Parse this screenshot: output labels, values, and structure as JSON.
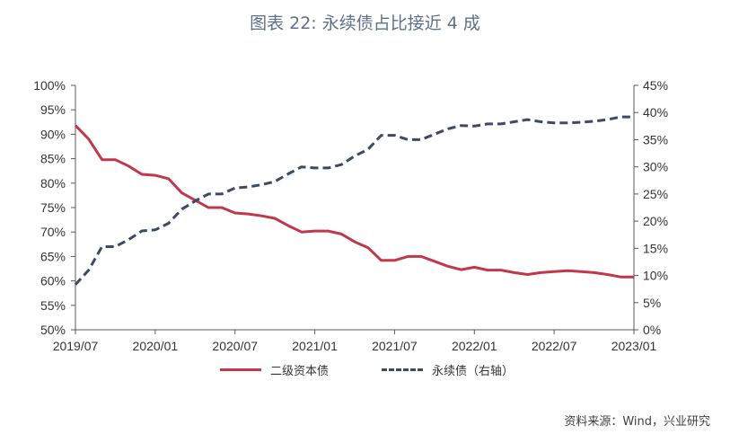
{
  "title": "图表 22: 永续债占比接近 4 成",
  "source": "资料来源：Wind，兴业研究",
  "colors": {
    "series1": "#c1384b",
    "series2": "#3b4a66",
    "axis": "#595959"
  },
  "chart_data": {
    "type": "line",
    "x_tick_labels": [
      "2019/07",
      "2020/01",
      "2020/07",
      "2021/01",
      "2021/07",
      "2022/01",
      "2022/07",
      "2023/01"
    ],
    "x_range": [
      "2019/07",
      "2023/01"
    ],
    "x": [
      "2019/07",
      "2019/08",
      "2019/09",
      "2019/10",
      "2019/11",
      "2019/12",
      "2020/01",
      "2020/02",
      "2020/03",
      "2020/04",
      "2020/05",
      "2020/06",
      "2020/07",
      "2020/08",
      "2020/09",
      "2020/10",
      "2020/11",
      "2020/12",
      "2021/01",
      "2021/02",
      "2021/03",
      "2021/04",
      "2021/05",
      "2021/06",
      "2021/07",
      "2021/08",
      "2021/09",
      "2021/10",
      "2021/11",
      "2021/12",
      "2022/01",
      "2022/02",
      "2022/03",
      "2022/04",
      "2022/05",
      "2022/06",
      "2022/07",
      "2022/08",
      "2022/09",
      "2022/10",
      "2022/11",
      "2022/12",
      "2023/01"
    ],
    "y_left": {
      "min": 50,
      "max": 100,
      "step": 5,
      "unit": "%",
      "tick_labels": [
        "50%",
        "55%",
        "60%",
        "65%",
        "70%",
        "75%",
        "80%",
        "85%",
        "90%",
        "95%",
        "100%"
      ]
    },
    "y_right": {
      "min": 0,
      "max": 45,
      "step": 5,
      "unit": "%",
      "tick_labels": [
        "0%",
        "5%",
        "10%",
        "15%",
        "20%",
        "25%",
        "30%",
        "35%",
        "40%",
        "45%"
      ]
    },
    "grid": false,
    "legend_position": "bottom",
    "series": [
      {
        "name": "二级资本债",
        "axis": "left",
        "style": "solid",
        "values": [
          91.8,
          89.0,
          84.8,
          84.8,
          83.5,
          81.8,
          81.6,
          80.9,
          78.0,
          76.5,
          75.0,
          75.0,
          73.9,
          73.7,
          73.3,
          72.8,
          71.3,
          70.0,
          70.2,
          70.2,
          69.6,
          68.0,
          66.8,
          64.2,
          64.2,
          65.0,
          65.0,
          64.0,
          63.0,
          62.3,
          62.8,
          62.2,
          62.2,
          61.7,
          61.3,
          61.7,
          61.9,
          62.1,
          61.9,
          61.7,
          61.3,
          60.8,
          60.8
        ]
      },
      {
        "name": "永续债（右轴）",
        "axis": "right",
        "style": "dashed",
        "values": [
          8.3,
          11.0,
          15.3,
          15.3,
          16.6,
          18.2,
          18.4,
          19.6,
          22.2,
          23.7,
          25.0,
          25.0,
          26.1,
          26.3,
          26.7,
          27.3,
          28.7,
          30.0,
          29.8,
          29.8,
          30.4,
          32.0,
          33.2,
          35.8,
          35.8,
          35.0,
          35.0,
          36.0,
          37.0,
          37.6,
          37.5,
          37.9,
          37.9,
          38.3,
          38.7,
          38.3,
          38.1,
          38.1,
          38.2,
          38.4,
          38.7,
          39.2,
          39.2
        ]
      }
    ]
  }
}
